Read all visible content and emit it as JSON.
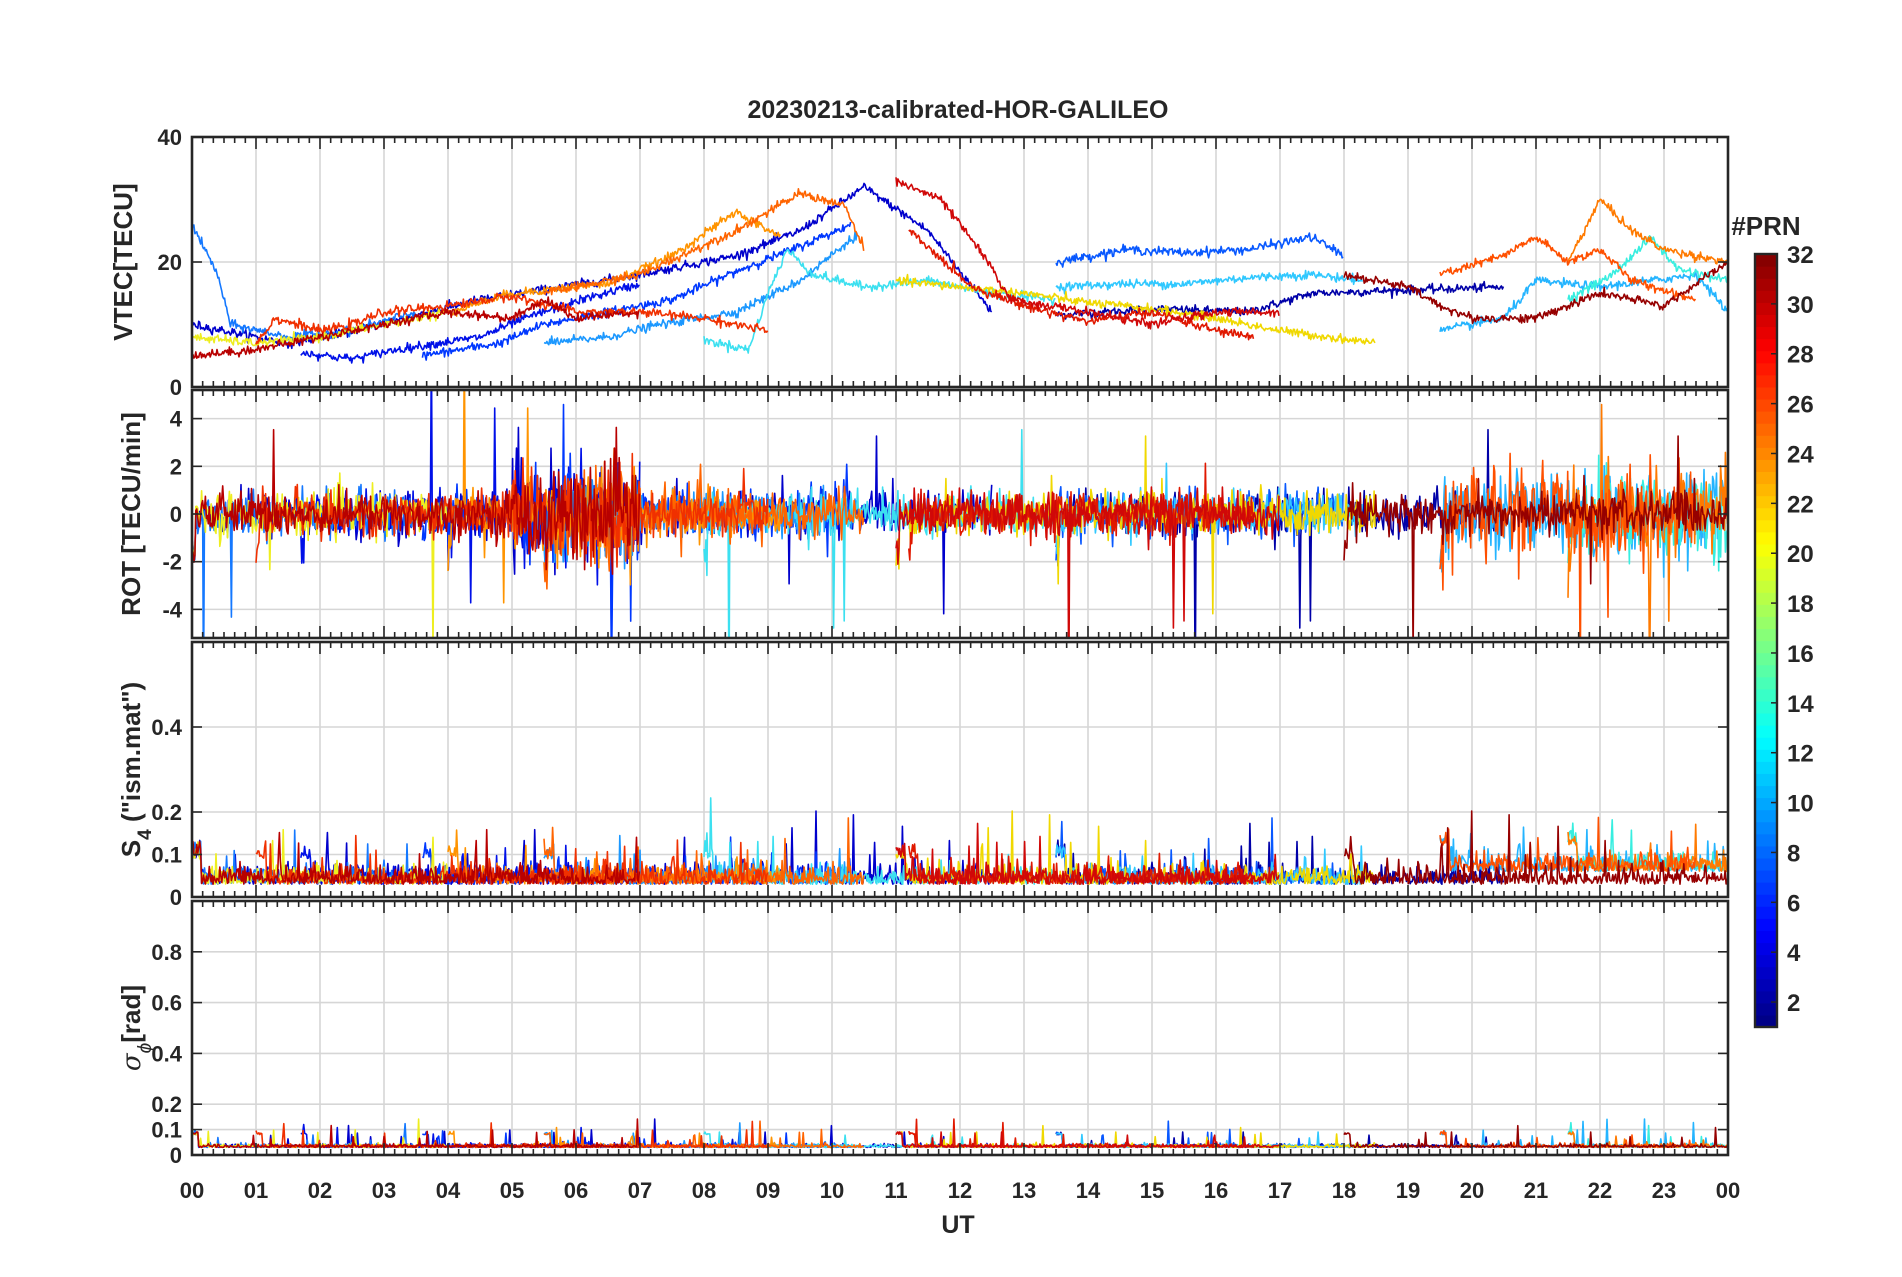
{
  "chart_data": {
    "type": "line",
    "title": "20230213-calibrated-HOR-GALILEO",
    "xlabel": "UT",
    "x_ticks": [
      "00",
      "01",
      "02",
      "03",
      "04",
      "05",
      "06",
      "07",
      "08",
      "09",
      "10",
      "11",
      "12",
      "13",
      "14",
      "15",
      "16",
      "17",
      "18",
      "19",
      "20",
      "21",
      "22",
      "23",
      "00"
    ],
    "xlim": [
      0,
      24
    ],
    "panels": [
      {
        "id": "vtec",
        "ylabel": "VTEC[TECU]",
        "ylim": [
          0,
          40
        ],
        "yticks": [
          0,
          20,
          40
        ],
        "ytick_labels": [
          "0",
          "20",
          "40"
        ]
      },
      {
        "id": "rot",
        "ylabel": "ROT [TECU/min]",
        "ylim": [
          -5.2,
          5.2
        ],
        "yticks": [
          -4,
          -2,
          0,
          2,
          4
        ],
        "ytick_labels": [
          "-4",
          "-2",
          "0",
          "2",
          "4"
        ]
      },
      {
        "id": "s4",
        "ylabel_main": "S",
        "ylabel_sub": "4",
        "ylabel_rest": " (\"ism.mat\")",
        "ylim": [
          0,
          0.6
        ],
        "yticks": [
          0,
          0.1,
          0.2,
          0.4
        ],
        "ytick_labels": [
          "0",
          "0.1",
          "0.2",
          "0.4"
        ]
      },
      {
        "id": "sigma",
        "ylabel_main": "σ",
        "ylabel_sub": "ϕ",
        "ylabel_rest": "[rad]",
        "ylim": [
          0,
          1
        ],
        "yticks": [
          0,
          0.1,
          0.2,
          0.4,
          0.6,
          0.8
        ],
        "ytick_labels": [
          "0",
          "0.1",
          "0.2",
          "0.4",
          "0.6",
          "0.8"
        ]
      }
    ],
    "colorbar": {
      "label": "#PRN",
      "range": [
        1,
        32
      ],
      "ticks": [
        2,
        4,
        6,
        8,
        10,
        12,
        14,
        16,
        18,
        20,
        22,
        24,
        26,
        28,
        30,
        32
      ],
      "colormap": "jet"
    },
    "series": [
      {
        "prn": 1,
        "color": "#0000a8",
        "vtec": [
          [
            13.5,
            11.5
          ],
          [
            15,
            12.5
          ],
          [
            16.5,
            12
          ],
          [
            17.5,
            15
          ],
          [
            19,
            15.5
          ],
          [
            20.5,
            16
          ]
        ]
      },
      {
        "prn": 2,
        "color": "#0000cc",
        "vtec": [
          [
            0,
            10
          ],
          [
            1.5,
            7
          ],
          [
            2.5,
            9
          ],
          [
            4.5,
            14
          ],
          [
            7,
            18
          ],
          [
            8.5,
            21
          ],
          [
            9.5,
            25
          ],
          [
            10.5,
            32
          ],
          [
            11.5,
            25
          ],
          [
            12.5,
            12
          ]
        ]
      },
      {
        "prn": 3,
        "color": "#0010e8",
        "vtec": [
          [
            1.7,
            5.5
          ],
          [
            2.5,
            4.5
          ],
          [
            3.2,
            6
          ],
          [
            4.5,
            8
          ],
          [
            5.2,
            11
          ],
          [
            6.1,
            14
          ],
          [
            7,
            16.5
          ]
        ]
      },
      {
        "prn": 4,
        "color": "#0038ff",
        "vtec": [
          [
            3.6,
            5
          ],
          [
            4.8,
            7
          ],
          [
            5.5,
            10
          ],
          [
            6.5,
            12
          ],
          [
            7.5,
            14
          ],
          [
            8.5,
            18.5
          ],
          [
            9.5,
            22.5
          ],
          [
            10.3,
            26
          ]
        ]
      },
      {
        "prn": 5,
        "color": "#0858ff",
        "vtec": [
          [
            13.5,
            20
          ],
          [
            14.6,
            22
          ],
          [
            15.5,
            21.5
          ],
          [
            16.5,
            22
          ],
          [
            17.5,
            24
          ],
          [
            18,
            21
          ]
        ]
      },
      {
        "prn": 6,
        "color": "#1478ff",
        "vtec": [
          [
            0,
            26
          ],
          [
            0.4,
            18
          ],
          [
            0.6,
            10
          ],
          [
            1.5,
            8
          ],
          [
            2.5,
            9
          ],
          [
            3.5,
            12
          ]
        ]
      },
      {
        "prn": 7,
        "color": "#1c98ff",
        "vtec": [
          [
            5.5,
            7
          ],
          [
            6.5,
            8
          ],
          [
            7.3,
            10
          ],
          [
            8.5,
            12
          ],
          [
            9.5,
            17
          ],
          [
            10.4,
            24.5
          ]
        ]
      },
      {
        "prn": 8,
        "color": "#24b4ff",
        "vtec": [
          [
            19.5,
            9
          ],
          [
            20.5,
            11
          ],
          [
            21,
            17
          ],
          [
            22,
            16
          ],
          [
            22.8,
            17
          ],
          [
            23.5,
            18
          ],
          [
            24,
            12
          ]
        ]
      },
      {
        "prn": 9,
        "color": "#30c8ff",
        "vtec": [
          [
            13.5,
            16
          ],
          [
            14.5,
            16.5
          ],
          [
            15.5,
            16.5
          ],
          [
            16.5,
            17.5
          ],
          [
            17.5,
            18
          ],
          [
            18.3,
            17
          ]
        ]
      },
      {
        "prn": 10,
        "color": "#3ce0f0",
        "vtec": [
          [
            8,
            7.5
          ],
          [
            8.7,
            6
          ],
          [
            9,
            15
          ],
          [
            9.3,
            22
          ],
          [
            9.7,
            18
          ],
          [
            10.5,
            16
          ],
          [
            11.5,
            17
          ],
          [
            12.5,
            15
          ],
          [
            13.5,
            14
          ]
        ]
      },
      {
        "prn": 11,
        "color": "#38eee0",
        "vtec": [
          [
            21.5,
            14
          ],
          [
            22.2,
            18
          ],
          [
            22.8,
            24
          ],
          [
            23.2,
            19
          ],
          [
            24,
            17
          ]
        ]
      },
      {
        "prn": 12,
        "color": "#eeee20",
        "vtec": [
          [
            0,
            8
          ],
          [
            1,
            7
          ],
          [
            2,
            8
          ],
          [
            3,
            10
          ],
          [
            4,
            12
          ]
        ]
      },
      {
        "prn": 13,
        "color": "#f0d800",
        "vtec": [
          [
            11,
            17
          ],
          [
            12,
            16
          ],
          [
            13,
            15
          ],
          [
            14,
            13.5
          ],
          [
            15,
            12.5
          ],
          [
            16,
            11
          ],
          [
            17,
            9
          ],
          [
            18.5,
            7
          ]
        ]
      },
      {
        "prn": 14,
        "color": "#ff9400",
        "vtec": [
          [
            4,
            12
          ],
          [
            5,
            15
          ],
          [
            6.5,
            16.5
          ],
          [
            7.5,
            21
          ],
          [
            8.5,
            28
          ],
          [
            9.2,
            24
          ]
        ]
      },
      {
        "prn": 15,
        "color": "#ff7a00",
        "vtec": [
          [
            21.5,
            20
          ],
          [
            21.8,
            26
          ],
          [
            22,
            30
          ],
          [
            22.5,
            25
          ],
          [
            23,
            22
          ],
          [
            24,
            20
          ]
        ]
      },
      {
        "prn": 16,
        "color": "#ff6400",
        "vtec": [
          [
            5.5,
            15
          ],
          [
            7,
            18
          ],
          [
            8.5,
            25
          ],
          [
            9.5,
            31
          ],
          [
            10.2,
            29
          ],
          [
            10.5,
            22
          ]
        ]
      },
      {
        "prn": 17,
        "color": "#ff5000",
        "vtec": [
          [
            19.5,
            18
          ],
          [
            20.5,
            21
          ],
          [
            21,
            24
          ],
          [
            21.5,
            20
          ],
          [
            22,
            22
          ],
          [
            22.5,
            17
          ],
          [
            23.5,
            14
          ]
        ]
      },
      {
        "prn": 18,
        "color": "#f03000",
        "vtec": [
          [
            1,
            7
          ],
          [
            1.3,
            11
          ],
          [
            2,
            9
          ],
          [
            2.5,
            10
          ],
          [
            3,
            12
          ],
          [
            4,
            13
          ],
          [
            5,
            14.5
          ],
          [
            6,
            12
          ],
          [
            7,
            12
          ],
          [
            8,
            11
          ],
          [
            9,
            9
          ]
        ]
      },
      {
        "prn": 19,
        "color": "#e01800",
        "vtec": [
          [
            11.2,
            25
          ],
          [
            12.2,
            16
          ],
          [
            13,
            13
          ],
          [
            14,
            10.5
          ],
          [
            15,
            12
          ],
          [
            16,
            9
          ],
          [
            16.6,
            8
          ]
        ]
      },
      {
        "prn": 20,
        "color": "#d00808",
        "vtec": [
          [
            11,
            33
          ],
          [
            11.7,
            30
          ],
          [
            12.3,
            22
          ],
          [
            12.8,
            14
          ],
          [
            14,
            12
          ],
          [
            15,
            10
          ],
          [
            16,
            12
          ],
          [
            17,
            12
          ]
        ]
      },
      {
        "prn": 21,
        "color": "#b80000",
        "vtec": [
          [
            0,
            5
          ],
          [
            1,
            6
          ],
          [
            2,
            8
          ],
          [
            3,
            10
          ],
          [
            4,
            12
          ],
          [
            5,
            11
          ],
          [
            5.5,
            14
          ],
          [
            6,
            11
          ],
          [
            7,
            12
          ]
        ]
      },
      {
        "prn": 22,
        "color": "#960000",
        "vtec": [
          [
            18,
            18
          ],
          [
            19,
            16
          ],
          [
            19.5,
            13
          ],
          [
            20,
            11
          ],
          [
            21,
            11
          ],
          [
            21.5,
            13
          ],
          [
            22,
            15
          ],
          [
            23,
            13
          ],
          [
            24,
            20
          ]
        ]
      }
    ]
  }
}
